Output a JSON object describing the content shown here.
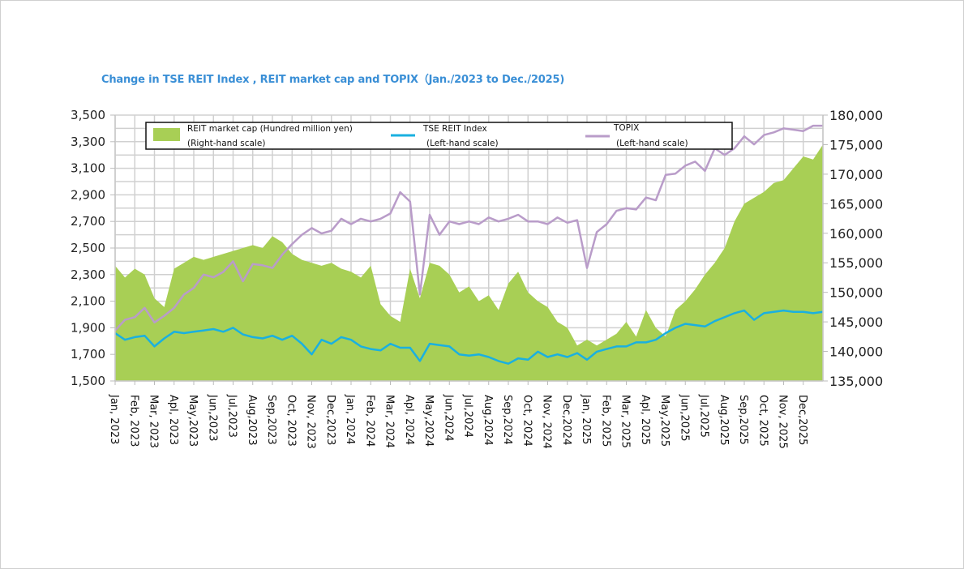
{
  "chart_data": {
    "type": "area",
    "title": "Change in TSE REIT Index , REIT market cap and TOPIX（Jan./2023 to Dec./2025)",
    "xlabel": "",
    "ylabel_left": "",
    "ylabel_right": "",
    "grid": true,
    "legend_position": "top",
    "y_left": {
      "range": [
        1500,
        3500
      ],
      "ticks": [
        "1,500",
        "1,700",
        "1,900",
        "2,100",
        "2,300",
        "2,500",
        "2,700",
        "2,900",
        "3,100",
        "3,300",
        "3,500"
      ],
      "tick_values": [
        1500,
        1700,
        1900,
        2100,
        2300,
        2500,
        2700,
        2900,
        3100,
        3300,
        3500
      ]
    },
    "y_right": {
      "range": [
        135000,
        180000
      ],
      "ticks": [
        "135,000",
        "140,000",
        "145,000",
        "150,000",
        "155,000",
        "160,000",
        "165,000",
        "170,000",
        "175,000",
        "180,000"
      ],
      "tick_values": [
        135000,
        140000,
        145000,
        150000,
        155000,
        160000,
        165000,
        170000,
        175000,
        180000
      ]
    },
    "categories": [
      "Jan, 2023",
      "Feb, 2023",
      "Mar, 2023",
      "Apl, 2023",
      "May,2023",
      "Jun,2023",
      "Jul,2023",
      "Aug,2023",
      "Sep,2023",
      "Oct, 2023",
      "Nov, 2023",
      "Dec,2023",
      "Jan, 2024",
      "Feb, 2024",
      "Mar, 2024",
      "Apl, 2024",
      "May,2024",
      "Jun,2024",
      "Jul,2024",
      "Aug,2024",
      "Sep,2024",
      "Oct, 2024",
      "Nov, 2024",
      "Dec,2024",
      "Jan, 2025",
      "Feb, 2025",
      "Mar, 2025",
      "Apl, 2025",
      "May,2025",
      "Jun,2025",
      "Jul,2025",
      "Aug,2025",
      "Sep,2025",
      "Oct, 2025",
      "Nov, 2025",
      "Dec,2025"
    ],
    "x_points": [
      0,
      0.5,
      1,
      1.5,
      2,
      2.5,
      3,
      3.5,
      4,
      4.5,
      5,
      5.5,
      6,
      6.5,
      7,
      7.5,
      8,
      8.5,
      9,
      9.5,
      10,
      10.5,
      11,
      11.5,
      12,
      12.5,
      13,
      13.5,
      14,
      14.5,
      15,
      15.5,
      16,
      16.5,
      17,
      17.5,
      18,
      18.5,
      19,
      19.5,
      20,
      20.5,
      21,
      21.5,
      22,
      22.5,
      23,
      23.5,
      24,
      24.5,
      25,
      25.5,
      26,
      26.5,
      27,
      27.5,
      28,
      28.5,
      29,
      29.5,
      30,
      30.5,
      31,
      31.5,
      32,
      32.5,
      33,
      33.5,
      34,
      34.5,
      35,
      35.5,
      36
    ],
    "series": [
      {
        "name": "REIT market cap (Hundred million yen)",
        "scale_note": "(Right-hand scale)",
        "axis": "right",
        "style": "area",
        "color": "#a8cf55",
        "values": [
          154500,
          152500,
          154000,
          153000,
          149000,
          147500,
          154000,
          155000,
          156000,
          155500,
          156000,
          156500,
          157000,
          157500,
          158000,
          157500,
          159500,
          158500,
          156500,
          155500,
          155000,
          154500,
          155000,
          154000,
          153500,
          152500,
          154500,
          148000,
          146000,
          145000,
          154000,
          149000,
          155000,
          154500,
          153000,
          150000,
          151000,
          148500,
          149500,
          147000,
          151500,
          153500,
          150000,
          148500,
          147500,
          145000,
          144000,
          141000,
          142000,
          141000,
          142000,
          143000,
          145000,
          142500,
          147000,
          144000,
          142500,
          147000,
          148500,
          150500,
          153000,
          155000,
          157500,
          162000,
          165000,
          166000,
          167000,
          168500,
          169000,
          171000,
          173000,
          172500,
          175000
        ]
      },
      {
        "name": "TSE REIT Index",
        "scale_note": "(Left-hand scale)",
        "axis": "left",
        "style": "line",
        "color": "#1ab0e0",
        "values": [
          1860,
          1810,
          1830,
          1840,
          1760,
          1820,
          1870,
          1860,
          1870,
          1880,
          1890,
          1870,
          1900,
          1850,
          1830,
          1820,
          1840,
          1810,
          1840,
          1780,
          1700,
          1810,
          1780,
          1830,
          1810,
          1760,
          1740,
          1730,
          1780,
          1750,
          1750,
          1650,
          1780,
          1770,
          1760,
          1700,
          1690,
          1700,
          1680,
          1650,
          1630,
          1670,
          1660,
          1720,
          1680,
          1700,
          1680,
          1710,
          1660,
          1720,
          1740,
          1760,
          1760,
          1790,
          1790,
          1810,
          1860,
          1900,
          1930,
          1920,
          1910,
          1950,
          1980,
          2010,
          2030,
          1960,
          2010,
          2020,
          2030,
          2020,
          2020,
          2010,
          2020
        ]
      },
      {
        "name": "TOPIX",
        "scale_note": "(Left-hand scale)",
        "axis": "left",
        "style": "line",
        "color": "#b99cc9",
        "values": [
          1880,
          1960,
          1980,
          2050,
          1940,
          1990,
          2050,
          2150,
          2200,
          2300,
          2280,
          2320,
          2400,
          2250,
          2380,
          2370,
          2350,
          2450,
          2530,
          2600,
          2650,
          2610,
          2630,
          2720,
          2680,
          2720,
          2700,
          2720,
          2760,
          2920,
          2850,
          2150,
          2750,
          2600,
          2700,
          2680,
          2700,
          2680,
          2730,
          2700,
          2720,
          2750,
          2700,
          2700,
          2680,
          2730,
          2690,
          2710,
          2350,
          2620,
          2680,
          2780,
          2800,
          2790,
          2880,
          2860,
          3050,
          3060,
          3120,
          3150,
          3080,
          3250,
          3200,
          3250,
          3340,
          3280,
          3350,
          3370,
          3400,
          3390,
          3380,
          3420,
          3420
        ]
      }
    ]
  },
  "legend": {
    "items": [
      {
        "label": "REIT market cap (Hundred million yen)",
        "sublabel": "(Right-hand scale)"
      },
      {
        "label": "TSE REIT Index",
        "sublabel": "(Left-hand scale)"
      },
      {
        "label": "TOPIX",
        "sublabel": "(Left-hand scale)"
      }
    ]
  }
}
